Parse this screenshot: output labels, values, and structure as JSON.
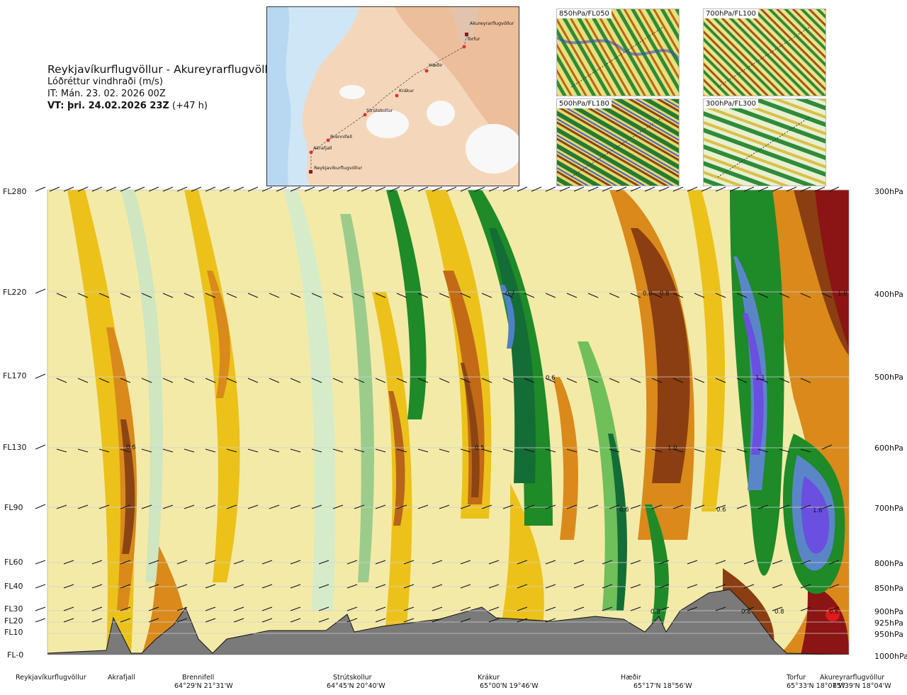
{
  "header": {
    "route": "Reykjavíkurflugvöllur - Akureyrarflugvöllur",
    "parameter": "Lóðréttur vindhraði (m/s)",
    "it": "IT: Mán. 23. 02. 2026 00Z",
    "vt_bold": "VT: þri. 24.02.2026 23Z",
    "vt_rest": " (+47 h)"
  },
  "route_map": {
    "waypoints": [
      "Akureyrarflugvöllur",
      "Torfur",
      "Hæðir",
      "Krákur",
      "Strútskollur",
      "Brennifell",
      "Akrafjall",
      "Reykjavíkurflugvöllur"
    ]
  },
  "level_maps": [
    "850hPa/FL050",
    "700hPa/FL100",
    "500hPa/FL180",
    "300hPa/FL300"
  ],
  "flight_levels": [
    "FL280",
    "FL220",
    "FL170",
    "FL130",
    "FL90",
    "FL60",
    "FL40",
    "FL30",
    "FL20",
    "FL10",
    "FL-0"
  ],
  "pressure_levels": [
    "300hPa",
    "400hPa",
    "500hPa",
    "600hPa",
    "700hPa",
    "800hPa",
    "850hPa",
    "900hPa",
    "925hPa",
    "950hPa",
    "1000hPa"
  ],
  "contour_labels": [
    "0.7",
    "0.8",
    "0.8",
    "1.0",
    "0.6",
    "1.1",
    "0.6",
    "0.5",
    "1.0",
    "0.6",
    "0.6",
    "1.6",
    "0.8",
    "0.8",
    "0.8",
    "0.6"
  ],
  "locations": [
    {
      "name": "Reykjavíkurflugvöllur",
      "coord": ""
    },
    {
      "name": "Akrafjall",
      "coord": ""
    },
    {
      "name": "Brennifell",
      "coord": "64°29'N 21°31'W"
    },
    {
      "name": "Strútskollur",
      "coord": "64°45'N 20°40'W"
    },
    {
      "name": "Krákur",
      "coord": "65°00'N 19°46'W"
    },
    {
      "name": "Hæðir",
      "coord": "65°17'N 18°56'W"
    },
    {
      "name": "Torfur",
      "coord": "65°33'N 18°07'W"
    },
    {
      "name": "Akureyrarflugvöllur",
      "coord": "65°39'N 18°04'W"
    }
  ],
  "colors": {
    "terrain": "#7a7a7a",
    "strong_up": "#8b1414",
    "strong_down": "#6a4fe0"
  }
}
